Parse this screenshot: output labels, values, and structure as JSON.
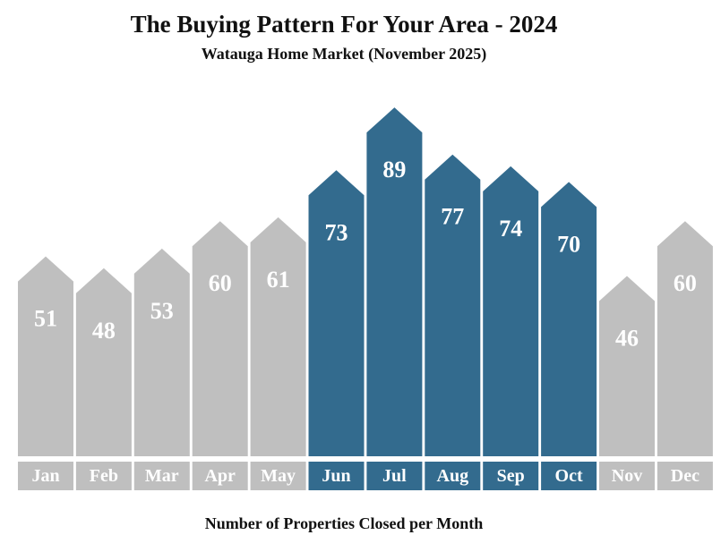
{
  "chart_data": {
    "type": "bar",
    "title": "The Buying Pattern For Your Area - 2024",
    "subtitle": "Watauga Home Market (November 2025)",
    "xlabel": "Number of Properties Closed per Month",
    "ylabel": "",
    "categories": [
      "Jan",
      "Feb",
      "Mar",
      "Apr",
      "May",
      "Jun",
      "Jul",
      "Aug",
      "Sep",
      "Oct",
      "Nov",
      "Dec"
    ],
    "values": [
      51,
      48,
      53,
      60,
      61,
      73,
      89,
      77,
      74,
      70,
      46,
      60
    ],
    "highlighted": [
      false,
      false,
      false,
      false,
      false,
      true,
      true,
      true,
      true,
      true,
      false,
      false
    ],
    "colors": {
      "default": "#bfbfbf",
      "highlight": "#336b8e",
      "text": "#ffffff",
      "title": "#111111"
    },
    "ylim": [
      0,
      95
    ],
    "grid": false,
    "legend": "none"
  }
}
